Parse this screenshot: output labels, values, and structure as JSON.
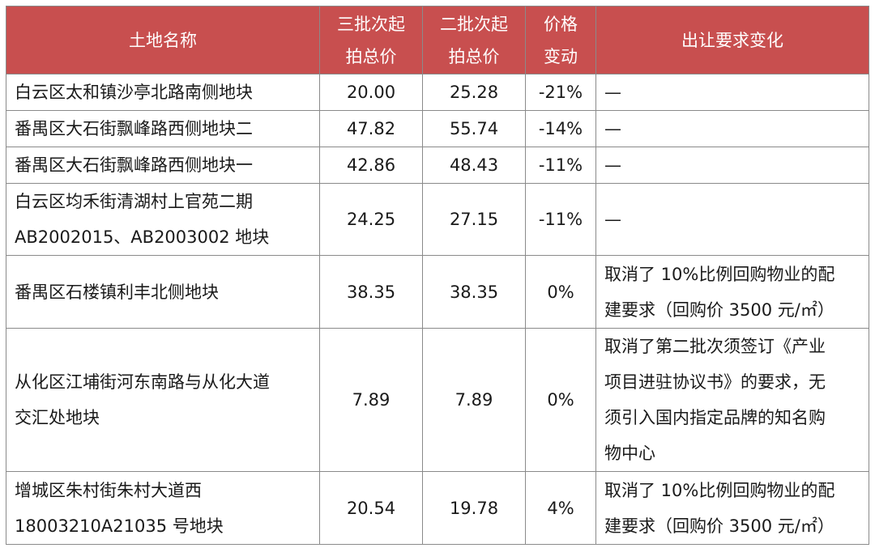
{
  "headers": {
    "name": "土地名称",
    "price3": [
      "三批次起",
      "拍总价"
    ],
    "price2": [
      "二批次起",
      "拍总价"
    ],
    "change": [
      "价格",
      "变动"
    ],
    "requirement": "出让要求变化"
  },
  "rows": [
    {
      "name": [
        "白云区太和镇沙亭北路南侧地块"
      ],
      "price3": "20.00",
      "price2": "25.28",
      "change": "-21%",
      "requirement": [
        "—"
      ]
    },
    {
      "name": [
        "番禺区大石街飘峰路西侧地块二"
      ],
      "price3": "47.82",
      "price2": "55.74",
      "change": "-14%",
      "requirement": [
        "—"
      ]
    },
    {
      "name": [
        "番禺区大石街飘峰路西侧地块一"
      ],
      "price3": "42.86",
      "price2": "48.43",
      "change": "-11%",
      "requirement": [
        "—"
      ]
    },
    {
      "name": [
        "白云区均禾街清湖村上官苑二期",
        "AB2002015、AB2003002 地块"
      ],
      "price3": "24.25",
      "price2": "27.15",
      "change": "-11%",
      "requirement": [
        "—"
      ]
    },
    {
      "name": [
        "番禺区石楼镇利丰北侧地块"
      ],
      "price3": "38.35",
      "price2": "38.35",
      "change": "0%",
      "requirement": [
        "取消了 10%比例回购物业的配",
        "建要求（回购价 3500 元/㎡）"
      ]
    },
    {
      "name": [
        "从化区江埔街河东南路与从化大道",
        "交汇处地块"
      ],
      "price3": "7.89",
      "price2": "7.89",
      "change": "0%",
      "requirement": [
        "取消了第二批次须签订《产业",
        "项目进驻协议书》的要求，无",
        "须引入国内指定品牌的知名购",
        "物中心"
      ]
    },
    {
      "name": [
        "增城区朱村街朱村大道西",
        "18003210A21035 号地块"
      ],
      "price3": "20.54",
      "price2": "19.78",
      "change": "4%",
      "requirement": [
        "取消了 10%比例回购物业的配",
        "建要求（回购价 3500 元/㎡）"
      ]
    }
  ]
}
